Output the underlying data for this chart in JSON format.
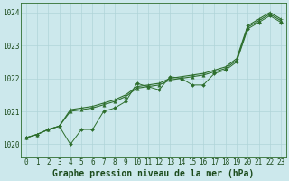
{
  "title": "Graphe pression niveau de la mer (hPa)",
  "background_color": "#cce8ec",
  "grid_color": "#b0d4d8",
  "line_color": "#2d6e2d",
  "x_min": -0.5,
  "x_max": 23.5,
  "y_min": 1019.6,
  "y_max": 1024.3,
  "yticks": [
    1020,
    1021,
    1022,
    1023,
    1024
  ],
  "xticks": [
    0,
    1,
    2,
    3,
    4,
    5,
    6,
    7,
    8,
    9,
    10,
    11,
    12,
    13,
    14,
    15,
    16,
    17,
    18,
    19,
    20,
    21,
    22,
    23
  ],
  "series_jagged": [
    1020.2,
    1020.3,
    1020.45,
    1020.55,
    1020.0,
    1020.45,
    1020.45,
    1021.0,
    1021.1,
    1021.3,
    1021.85,
    1021.75,
    1021.65,
    1022.05,
    1022.0,
    1021.8,
    1021.8,
    1022.15,
    1022.25,
    1022.5,
    1023.5,
    1023.7,
    1023.9,
    1023.7
  ],
  "series_smooth1": [
    1020.2,
    1020.3,
    1020.45,
    1020.55,
    1021.0,
    1021.05,
    1021.1,
    1021.2,
    1021.3,
    1021.45,
    1021.7,
    1021.75,
    1021.8,
    1021.95,
    1022.0,
    1022.05,
    1022.1,
    1022.2,
    1022.3,
    1022.55,
    1023.55,
    1023.75,
    1023.95,
    1023.75
  ],
  "series_smooth2": [
    1020.2,
    1020.3,
    1020.45,
    1020.55,
    1021.05,
    1021.1,
    1021.15,
    1021.25,
    1021.35,
    1021.5,
    1021.75,
    1021.8,
    1021.85,
    1022.0,
    1022.05,
    1022.1,
    1022.15,
    1022.25,
    1022.35,
    1022.6,
    1023.6,
    1023.8,
    1024.0,
    1023.8
  ],
  "ylabel_fontsize": 6.0,
  "xlabel_fontsize": 7.0,
  "tick_fontsize": 5.5
}
